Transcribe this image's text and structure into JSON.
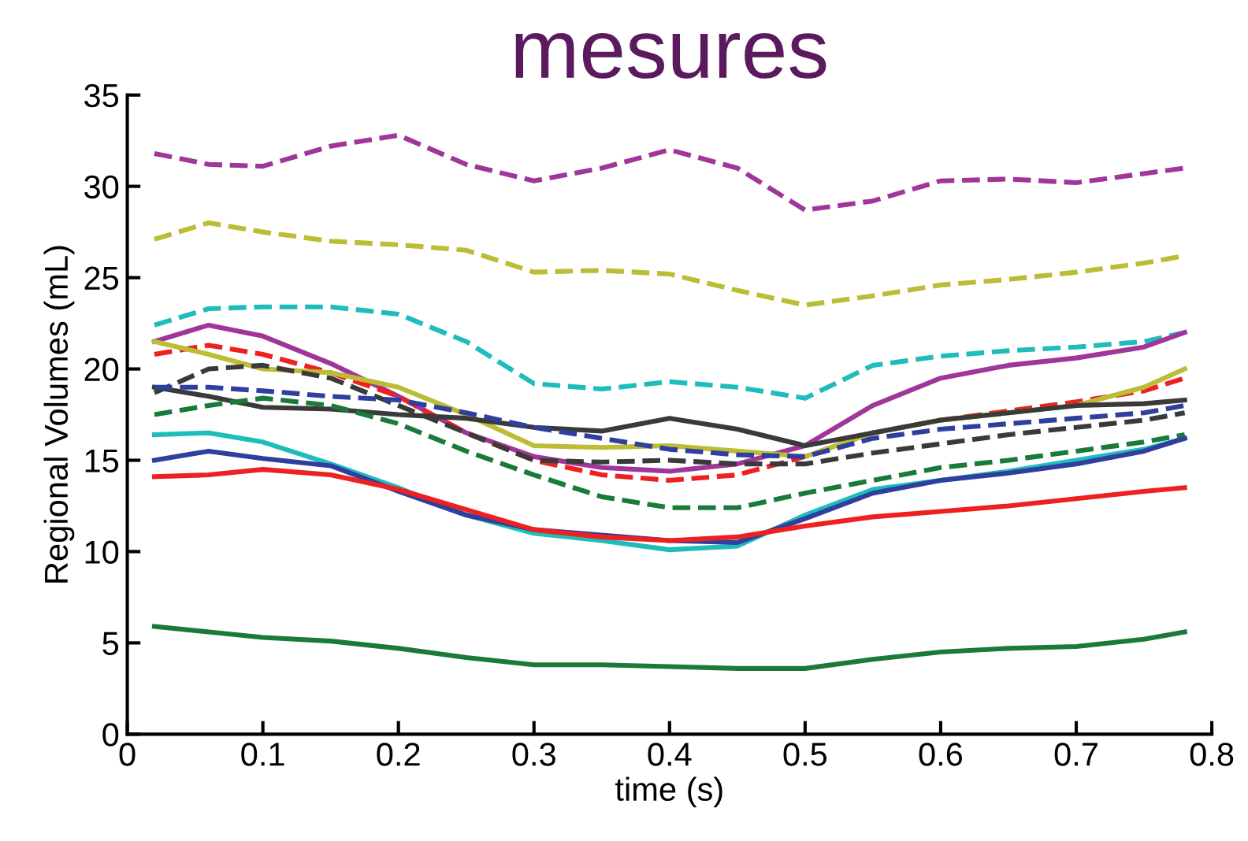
{
  "chart_data": {
    "type": "line",
    "title": "mesures",
    "xlabel": "time (s)",
    "ylabel": "Regional Volumes (mL)",
    "x": [
      0.02,
      0.06,
      0.1,
      0.15,
      0.2,
      0.25,
      0.3,
      0.35,
      0.4,
      0.45,
      0.5,
      0.55,
      0.6,
      0.65,
      0.7,
      0.75,
      0.78
    ],
    "xlim": [
      0,
      0.8
    ],
    "xticks": [
      0,
      0.1,
      0.2,
      0.3,
      0.4,
      0.5,
      0.6,
      0.7,
      0.8
    ],
    "ylim": [
      0,
      35
    ],
    "yticks": [
      0,
      5,
      10,
      15,
      20,
      25,
      30,
      35
    ],
    "grid": false,
    "series": [
      {
        "color": "#a0369a",
        "line_style": "dashed",
        "values": [
          31.8,
          31.2,
          31.1,
          32.2,
          32.8,
          31.2,
          30.3,
          31.0,
          32.0,
          31.0,
          28.7,
          29.2,
          30.3,
          30.4,
          30.2,
          30.7,
          31.0
        ]
      },
      {
        "color": "#bcbc35",
        "line_style": "dashed",
        "values": [
          27.1,
          28.0,
          27.5,
          27.0,
          26.8,
          26.5,
          25.3,
          25.4,
          25.2,
          24.3,
          23.5,
          24.0,
          24.6,
          24.9,
          25.3,
          25.8,
          26.2
        ]
      },
      {
        "color": "#1fbcbc",
        "line_style": "dashed",
        "values": [
          22.4,
          23.3,
          23.4,
          23.4,
          23.0,
          21.5,
          19.2,
          18.9,
          19.3,
          19.0,
          18.4,
          20.2,
          20.7,
          21.0,
          21.2,
          21.5,
          22.0
        ]
      },
      {
        "color": "#a0369a",
        "line_style": "solid",
        "values": [
          21.5,
          22.4,
          21.8,
          20.3,
          18.5,
          16.5,
          15.2,
          14.6,
          14.4,
          14.8,
          15.8,
          18.0,
          19.5,
          20.2,
          20.6,
          21.2,
          22.0
        ]
      },
      {
        "color": "#ee2020",
        "line_style": "dashed",
        "values": [
          20.8,
          21.3,
          20.8,
          19.8,
          18.5,
          16.5,
          15.0,
          14.2,
          13.9,
          14.2,
          15.2,
          16.5,
          17.2,
          17.7,
          18.2,
          18.8,
          19.5
        ]
      },
      {
        "color": "#bcbc35",
        "line_style": "solid",
        "values": [
          21.5,
          20.8,
          20.0,
          19.8,
          19.0,
          17.5,
          15.8,
          15.7,
          15.8,
          15.5,
          15.2,
          16.5,
          17.2,
          17.6,
          18.0,
          19.0,
          20.0
        ]
      },
      {
        "color": "#3a3a3a",
        "line_style": "dashed",
        "values": [
          18.7,
          20.0,
          20.2,
          19.5,
          18.0,
          16.5,
          15.0,
          14.9,
          15.0,
          14.8,
          14.8,
          15.4,
          15.9,
          16.4,
          16.8,
          17.2,
          17.6
        ]
      },
      {
        "color": "#3a3a3a",
        "line_style": "solid",
        "values": [
          19.0,
          18.5,
          17.9,
          17.8,
          17.5,
          17.3,
          16.8,
          16.6,
          17.3,
          16.7,
          15.8,
          16.5,
          17.2,
          17.6,
          18.0,
          18.1,
          18.3
        ]
      },
      {
        "color": "#2e3f9e",
        "line_style": "dashed",
        "values": [
          19.0,
          19.0,
          18.8,
          18.5,
          18.3,
          17.6,
          16.8,
          16.2,
          15.6,
          15.3,
          15.2,
          16.2,
          16.7,
          17.0,
          17.3,
          17.6,
          18.0
        ]
      },
      {
        "color": "#1a7a3a",
        "line_style": "dashed",
        "values": [
          17.5,
          18.0,
          18.4,
          18.0,
          17.0,
          15.5,
          14.2,
          13.0,
          12.4,
          12.4,
          13.2,
          13.9,
          14.6,
          15.0,
          15.5,
          16.0,
          16.4
        ]
      },
      {
        "color": "#1fbcbc",
        "line_style": "solid",
        "values": [
          16.4,
          16.5,
          16.0,
          14.8,
          13.5,
          12.0,
          11.0,
          10.6,
          10.1,
          10.3,
          12.0,
          13.4,
          13.9,
          14.4,
          15.0,
          15.6,
          16.2
        ]
      },
      {
        "color": "#2e3f9e",
        "line_style": "solid",
        "values": [
          15.0,
          15.5,
          15.1,
          14.7,
          13.3,
          12.0,
          11.2,
          10.9,
          10.6,
          10.5,
          11.8,
          13.2,
          13.9,
          14.3,
          14.8,
          15.5,
          16.2
        ]
      },
      {
        "color": "#ee2020",
        "line_style": "solid",
        "values": [
          14.1,
          14.2,
          14.5,
          14.2,
          13.4,
          12.3,
          11.2,
          10.8,
          10.6,
          10.8,
          11.4,
          11.9,
          12.2,
          12.5,
          12.9,
          13.3,
          13.5
        ]
      },
      {
        "color": "#1a7a3a",
        "line_style": "solid",
        "values": [
          5.9,
          5.6,
          5.3,
          5.1,
          4.7,
          4.2,
          3.8,
          3.8,
          3.7,
          3.6,
          3.6,
          4.1,
          4.5,
          4.7,
          4.8,
          5.2,
          5.6
        ]
      }
    ]
  }
}
